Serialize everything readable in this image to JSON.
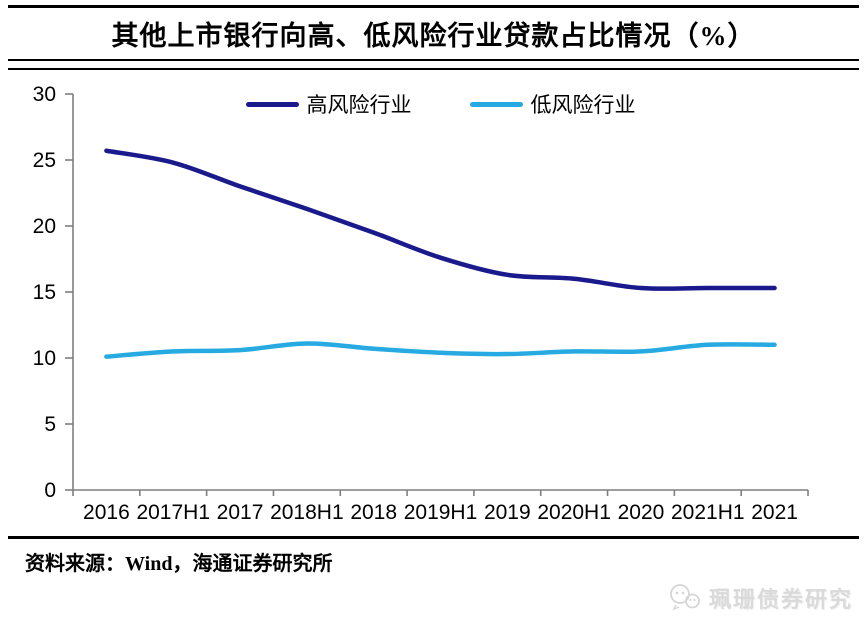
{
  "title": "其他上市银行向高、低风险行业贷款占比情况（%）",
  "source": "资料来源：Wind，海通证券研究所",
  "watermark": {
    "text": "珮珊债券研究",
    "icon": "wechat-chat-bubbles"
  },
  "colors": {
    "rule": "#000000",
    "axis": "#7f7f7f",
    "tick_label": "#000000",
    "high_risk_line": "#1A1A8C",
    "low_risk_line": "#27AAE1",
    "watermark": "#dadada"
  },
  "chart_data": {
    "type": "line",
    "title": "其他上市银行向高、低风险行业贷款占比情况（%）",
    "xlabel": "",
    "ylabel": "",
    "grid": false,
    "legend_position": "top-center",
    "ylim": [
      0,
      30
    ],
    "ytick_step": 5,
    "categories": [
      "2016",
      "2017H1",
      "2017",
      "2018H1",
      "2018",
      "2019H1",
      "2019",
      "2020H1",
      "2020",
      "2021H1",
      "2021"
    ],
    "series": [
      {
        "name": "高风险行业",
        "color": "#1A1A8C",
        "values": [
          25.7,
          24.8,
          23.0,
          21.3,
          19.5,
          17.6,
          16.3,
          16.0,
          15.3,
          15.3,
          15.3
        ]
      },
      {
        "name": "低风险行业",
        "color": "#27AAE1",
        "values": [
          10.1,
          10.5,
          10.6,
          11.1,
          10.7,
          10.4,
          10.3,
          10.5,
          10.5,
          11.0,
          11.0
        ]
      }
    ]
  }
}
